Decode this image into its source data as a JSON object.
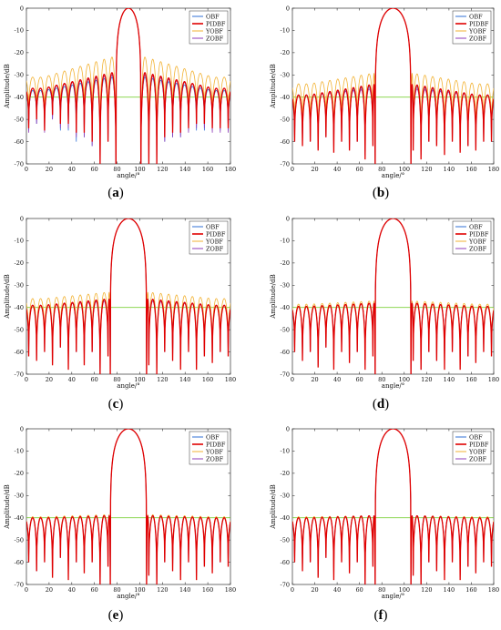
{
  "chart_data": [
    {
      "type": "line",
      "letter": "a",
      "xlabel": "angle/°",
      "ylabel": "Amplitude/dB",
      "xlim": [
        0,
        180
      ],
      "ylim": [
        -70,
        0
      ],
      "grid": false,
      "legend_position": "top-right",
      "x_ticks": [
        0,
        20,
        40,
        60,
        80,
        100,
        120,
        140,
        160,
        180
      ],
      "y_ticks": [
        0,
        -10,
        -20,
        -30,
        -40,
        -50,
        -60,
        -70
      ],
      "reference_line": {
        "y": -40,
        "color": "#7fd13b"
      },
      "mainlobe": {
        "center": 90,
        "null_left": 79,
        "null_right": 101
      },
      "sidelobe_nulls": [
        2,
        9,
        16,
        23,
        30,
        37,
        44,
        51,
        58,
        65,
        72,
        108,
        115,
        122,
        129,
        136,
        143,
        150,
        157,
        164,
        171,
        178
      ],
      "series": [
        {
          "name": "OBF",
          "color": "#2f6fd6",
          "near_peak": -31,
          "far_peak": -37,
          "null_depths": [
            -55,
            -52,
            -55,
            -50,
            -55,
            -55,
            -60,
            -58,
            -62,
            -70,
            -60,
            -65,
            -70,
            -60,
            -58,
            -58,
            -55,
            -55,
            -55,
            -55,
            -55,
            -55
          ]
        },
        {
          "name": "PIDBF",
          "color": "#e00000",
          "near_peak": -29,
          "far_peak": -36,
          "null_depths": [
            -54,
            -50,
            -55,
            -48,
            -52,
            -52,
            -56,
            -56,
            -60,
            -70,
            -60,
            -70,
            -70,
            -58,
            -56,
            -56,
            -54,
            -52,
            -52,
            -54,
            -54,
            -54
          ]
        },
        {
          "name": "YOBF",
          "color": "#f2b233",
          "near_peak": -22,
          "far_peak": -31,
          "null_depths": [
            -50,
            -48,
            -52,
            -46,
            -50,
            -50,
            -52,
            -52,
            -56,
            -66,
            -58,
            -62,
            -64,
            -56,
            -54,
            -54,
            -52,
            -50,
            -50,
            -52,
            -52,
            -52
          ]
        },
        {
          "name": "ZOBF",
          "color": "#8f3bb8",
          "near_peak": -30,
          "far_peak": -36,
          "null_depths": [
            -56,
            -52,
            -56,
            -50,
            -54,
            -54,
            -58,
            -58,
            -62,
            -70,
            -60,
            -70,
            -70,
            -60,
            -58,
            -58,
            -56,
            -54,
            -54,
            -56,
            -56,
            -56
          ]
        }
      ]
    },
    {
      "type": "line",
      "letter": "b",
      "xlabel": "angle/°",
      "ylabel": "Amplitude/dB",
      "xlim": [
        0,
        180
      ],
      "ylim": [
        -70,
        0
      ],
      "grid": false,
      "legend_position": "top-right",
      "x_ticks": [
        0,
        20,
        40,
        60,
        80,
        100,
        120,
        140,
        160,
        180
      ],
      "y_ticks": [
        0,
        -10,
        -20,
        -30,
        -40,
        -50,
        -60,
        -70
      ],
      "reference_line": {
        "y": -40,
        "color": "#7fd13b"
      },
      "mainlobe": {
        "center": 90,
        "null_left": 74,
        "null_right": 106
      },
      "sidelobe_nulls": [
        2,
        9,
        16,
        23,
        30,
        37,
        44,
        51,
        58,
        65,
        72,
        108,
        115,
        122,
        129,
        136,
        143,
        150,
        157,
        164,
        171,
        178
      ],
      "series": [
        {
          "name": "OBF",
          "color": "#2f6fd6",
          "near_peak": -35,
          "far_peak": -39,
          "null_depths": [
            -60,
            -62,
            -60,
            -63,
            -58,
            -64,
            -60,
            -63,
            -60,
            -66,
            -60,
            -62,
            -66,
            -60,
            -62,
            -64,
            -60,
            -64,
            -62,
            -63,
            -60,
            -60
          ]
        },
        {
          "name": "PIDBF",
          "color": "#e00000",
          "near_peak": -34,
          "far_peak": -39,
          "null_depths": [
            -60,
            -62,
            -60,
            -64,
            -58,
            -65,
            -60,
            -64,
            -60,
            -68,
            -62,
            -64,
            -68,
            -60,
            -62,
            -66,
            -60,
            -65,
            -62,
            -64,
            -60,
            -60
          ]
        },
        {
          "name": "YOBF",
          "color": "#f2b233",
          "near_peak": -29,
          "far_peak": -34,
          "null_depths": [
            -56,
            -58,
            -56,
            -62,
            -54,
            -62,
            -56,
            -60,
            -56,
            -64,
            -58,
            -60,
            -64,
            -58,
            -60,
            -62,
            -58,
            -62,
            -60,
            -60,
            -58,
            -58
          ]
        },
        {
          "name": "ZOBF",
          "color": "#8f3bb8",
          "near_peak": -36,
          "far_peak": -39,
          "null_depths": [
            -60,
            -62,
            -60,
            -63,
            -58,
            -64,
            -60,
            -63,
            -60,
            -66,
            -60,
            -62,
            -66,
            -60,
            -62,
            -64,
            -60,
            -64,
            -62,
            -63,
            -60,
            -60
          ]
        }
      ]
    },
    {
      "type": "line",
      "letter": "c",
      "xlabel": "angle/°",
      "ylabel": "Amplitude/dB",
      "xlim": [
        0,
        180
      ],
      "ylim": [
        -70,
        0
      ],
      "grid": false,
      "legend_position": "top-right",
      "x_ticks": [
        0,
        20,
        40,
        60,
        80,
        100,
        120,
        140,
        160,
        180
      ],
      "y_ticks": [
        0,
        -10,
        -20,
        -30,
        -40,
        -50,
        -60,
        -70
      ],
      "reference_line": {
        "y": -40,
        "color": "#7fd13b"
      },
      "mainlobe": {
        "center": 90,
        "null_left": 74,
        "null_right": 106
      },
      "sidelobe_nulls": [
        2,
        9,
        16,
        23,
        30,
        37,
        44,
        51,
        58,
        65,
        72,
        108,
        115,
        122,
        129,
        136,
        143,
        150,
        157,
        164,
        171,
        178
      ],
      "series": [
        {
          "name": "OBF",
          "color": "#2f6fd6",
          "near_peak": -36,
          "far_peak": -39,
          "null_depths": [
            -62,
            -63,
            -60,
            -65,
            -58,
            -66,
            -60,
            -64,
            -60,
            -70,
            -62,
            -64,
            -68,
            -60,
            -64,
            -66,
            -60,
            -66,
            -62,
            -64,
            -60,
            -62
          ]
        },
        {
          "name": "PIDBF",
          "color": "#e00000",
          "near_peak": -36,
          "far_peak": -39,
          "null_depths": [
            -62,
            -64,
            -60,
            -66,
            -58,
            -68,
            -60,
            -66,
            -60,
            -70,
            -62,
            -66,
            -70,
            -60,
            -64,
            -68,
            -60,
            -68,
            -62,
            -65,
            -60,
            -62
          ]
        },
        {
          "name": "YOBF",
          "color": "#f2b233",
          "near_peak": -33,
          "far_peak": -36,
          "null_depths": [
            -60,
            -62,
            -58,
            -66,
            -56,
            -68,
            -58,
            -64,
            -58,
            -70,
            -60,
            -64,
            -70,
            -58,
            -62,
            -68,
            -58,
            -68,
            -60,
            -64,
            -58,
            -60
          ]
        },
        {
          "name": "ZOBF",
          "color": "#8f3bb8",
          "near_peak": -37,
          "far_peak": -39,
          "null_depths": [
            -62,
            -63,
            -60,
            -65,
            -58,
            -66,
            -60,
            -64,
            -60,
            -70,
            -62,
            -64,
            -68,
            -60,
            -64,
            -66,
            -60,
            -66,
            -62,
            -64,
            -60,
            -62
          ]
        }
      ]
    },
    {
      "type": "line",
      "letter": "d",
      "xlabel": "angle/°",
      "ylabel": "Amplitude/dB",
      "xlim": [
        0,
        180
      ],
      "ylim": [
        -70,
        0
      ],
      "grid": false,
      "legend_position": "top-right",
      "x_ticks": [
        0,
        20,
        40,
        60,
        80,
        100,
        120,
        140,
        160,
        180
      ],
      "y_ticks": [
        0,
        -10,
        -20,
        -30,
        -40,
        -50,
        -60,
        -70
      ],
      "reference_line": {
        "y": -40,
        "color": "#7fd13b"
      },
      "mainlobe": {
        "center": 90,
        "null_left": 74,
        "null_right": 106
      },
      "sidelobe_nulls": [
        2,
        9,
        16,
        23,
        30,
        37,
        44,
        51,
        58,
        65,
        72,
        108,
        115,
        122,
        129,
        136,
        143,
        150,
        157,
        164,
        171,
        178
      ],
      "series": [
        {
          "name": "OBF",
          "color": "#2f6fd6",
          "near_peak": -38,
          "far_peak": -39.5,
          "null_depths": [
            -60,
            -64,
            -60,
            -66,
            -58,
            -66,
            -60,
            -64,
            -60,
            -66,
            -60,
            -62,
            -68,
            -60,
            -64,
            -66,
            -60,
            -66,
            -62,
            -64,
            -60,
            -62
          ]
        },
        {
          "name": "PIDBF",
          "color": "#e00000",
          "near_peak": -38,
          "far_peak": -39.5,
          "null_depths": [
            -60,
            -64,
            -60,
            -67,
            -58,
            -68,
            -60,
            -65,
            -60,
            -68,
            -62,
            -64,
            -68,
            -60,
            -64,
            -68,
            -60,
            -68,
            -62,
            -65,
            -60,
            -62
          ]
        },
        {
          "name": "YOBF",
          "color": "#f2b233",
          "near_peak": -37,
          "far_peak": -38.5,
          "null_depths": [
            -60,
            -63,
            -58,
            -67,
            -56,
            -68,
            -58,
            -64,
            -58,
            -66,
            -60,
            -62,
            -68,
            -58,
            -62,
            -68,
            -58,
            -68,
            -60,
            -64,
            -58,
            -60
          ]
        },
        {
          "name": "ZOBF",
          "color": "#8f3bb8",
          "near_peak": -38,
          "far_peak": -39.5,
          "null_depths": [
            -60,
            -64,
            -60,
            -66,
            -58,
            -66,
            -60,
            -64,
            -60,
            -66,
            -60,
            -62,
            -68,
            -60,
            -64,
            -66,
            -60,
            -66,
            -62,
            -64,
            -60,
            -62
          ]
        }
      ]
    },
    {
      "type": "line",
      "letter": "e",
      "xlabel": "angle/°",
      "ylabel": "Amplitude/dB",
      "xlim": [
        0,
        180
      ],
      "ylim": [
        -70,
        0
      ],
      "grid": false,
      "legend_position": "top-right",
      "x_ticks": [
        0,
        20,
        40,
        60,
        80,
        100,
        120,
        140,
        160,
        180
      ],
      "y_ticks": [
        0,
        -10,
        -20,
        -30,
        -40,
        -50,
        -60,
        -70
      ],
      "reference_line": {
        "y": -40,
        "color": "#7fd13b"
      },
      "mainlobe": {
        "center": 90,
        "null_left": 74,
        "null_right": 106
      },
      "sidelobe_nulls": [
        2,
        9,
        16,
        23,
        30,
        37,
        44,
        51,
        58,
        65,
        72,
        108,
        115,
        122,
        129,
        136,
        143,
        150,
        157,
        164,
        171,
        178
      ],
      "series": [
        {
          "name": "OBF",
          "color": "#2f6fd6",
          "near_peak": -39,
          "far_peak": -40,
          "null_depths": [
            -60,
            -64,
            -60,
            -66,
            -58,
            -66,
            -60,
            -64,
            -60,
            -70,
            -62,
            -66,
            -70,
            -60,
            -64,
            -66,
            -60,
            -66,
            -62,
            -64,
            -60,
            -62
          ]
        },
        {
          "name": "PIDBF",
          "color": "#e00000",
          "near_peak": -39,
          "far_peak": -40,
          "null_depths": [
            -60,
            -64,
            -60,
            -67,
            -58,
            -68,
            -60,
            -65,
            -60,
            -70,
            -62,
            -66,
            -70,
            -60,
            -64,
            -68,
            -60,
            -68,
            -62,
            -65,
            -60,
            -62
          ]
        },
        {
          "name": "YOBF",
          "color": "#f2b233",
          "near_peak": -38.5,
          "far_peak": -39.5,
          "null_depths": [
            -60,
            -63,
            -58,
            -67,
            -56,
            -68,
            -58,
            -64,
            -58,
            -70,
            -60,
            -66,
            -70,
            -58,
            -62,
            -68,
            -58,
            -68,
            -60,
            -64,
            -58,
            -60
          ]
        },
        {
          "name": "ZOBF",
          "color": "#8f3bb8",
          "near_peak": -39,
          "far_peak": -40,
          "null_depths": [
            -60,
            -64,
            -60,
            -66,
            -58,
            -66,
            -60,
            -64,
            -60,
            -70,
            -62,
            -66,
            -70,
            -60,
            -64,
            -66,
            -60,
            -66,
            -62,
            -64,
            -60,
            -62
          ]
        }
      ]
    },
    {
      "type": "line",
      "letter": "f",
      "xlabel": "angle/°",
      "ylabel": "Amplitude/dB",
      "xlim": [
        0,
        180
      ],
      "ylim": [
        -70,
        0
      ],
      "grid": false,
      "legend_position": "top-right",
      "x_ticks": [
        0,
        20,
        40,
        60,
        80,
        100,
        120,
        140,
        160,
        180
      ],
      "y_ticks": [
        0,
        -10,
        -20,
        -30,
        -40,
        -50,
        -60,
        -70
      ],
      "reference_line": {
        "y": -40,
        "color": "#7fd13b"
      },
      "mainlobe": {
        "center": 90,
        "null_left": 74,
        "null_right": 106
      },
      "sidelobe_nulls": [
        2,
        9,
        16,
        23,
        30,
        37,
        44,
        51,
        58,
        65,
        72,
        108,
        115,
        122,
        129,
        136,
        143,
        150,
        157,
        164,
        171,
        178
      ],
      "series": [
        {
          "name": "OBF",
          "color": "#2f6fd6",
          "near_peak": -39,
          "far_peak": -40,
          "null_depths": [
            -60,
            -64,
            -60,
            -66,
            -58,
            -66,
            -60,
            -64,
            -60,
            -70,
            -62,
            -66,
            -70,
            -60,
            -64,
            -66,
            -60,
            -66,
            -62,
            -64,
            -60,
            -62
          ]
        },
        {
          "name": "PIDBF",
          "color": "#e00000",
          "near_peak": -39,
          "far_peak": -40,
          "null_depths": [
            -60,
            -64,
            -60,
            -67,
            -58,
            -68,
            -60,
            -65,
            -60,
            -70,
            -62,
            -66,
            -70,
            -60,
            -64,
            -68,
            -60,
            -68,
            -62,
            -65,
            -60,
            -62
          ]
        },
        {
          "name": "YOBF",
          "color": "#f2b233",
          "near_peak": -39,
          "far_peak": -39.5,
          "null_depths": [
            -60,
            -63,
            -58,
            -67,
            -56,
            -68,
            -58,
            -64,
            -58,
            -70,
            -60,
            -66,
            -70,
            -58,
            -62,
            -68,
            -58,
            -68,
            -60,
            -64,
            -58,
            -60
          ]
        },
        {
          "name": "ZOBF",
          "color": "#8f3bb8",
          "near_peak": -39,
          "far_peak": -40,
          "null_depths": [
            -60,
            -64,
            -60,
            -66,
            -58,
            -66,
            -60,
            -64,
            -60,
            -70,
            -62,
            -66,
            -70,
            -60,
            -64,
            -66,
            -60,
            -66,
            -62,
            -64,
            -60,
            -62
          ]
        }
      ]
    }
  ]
}
